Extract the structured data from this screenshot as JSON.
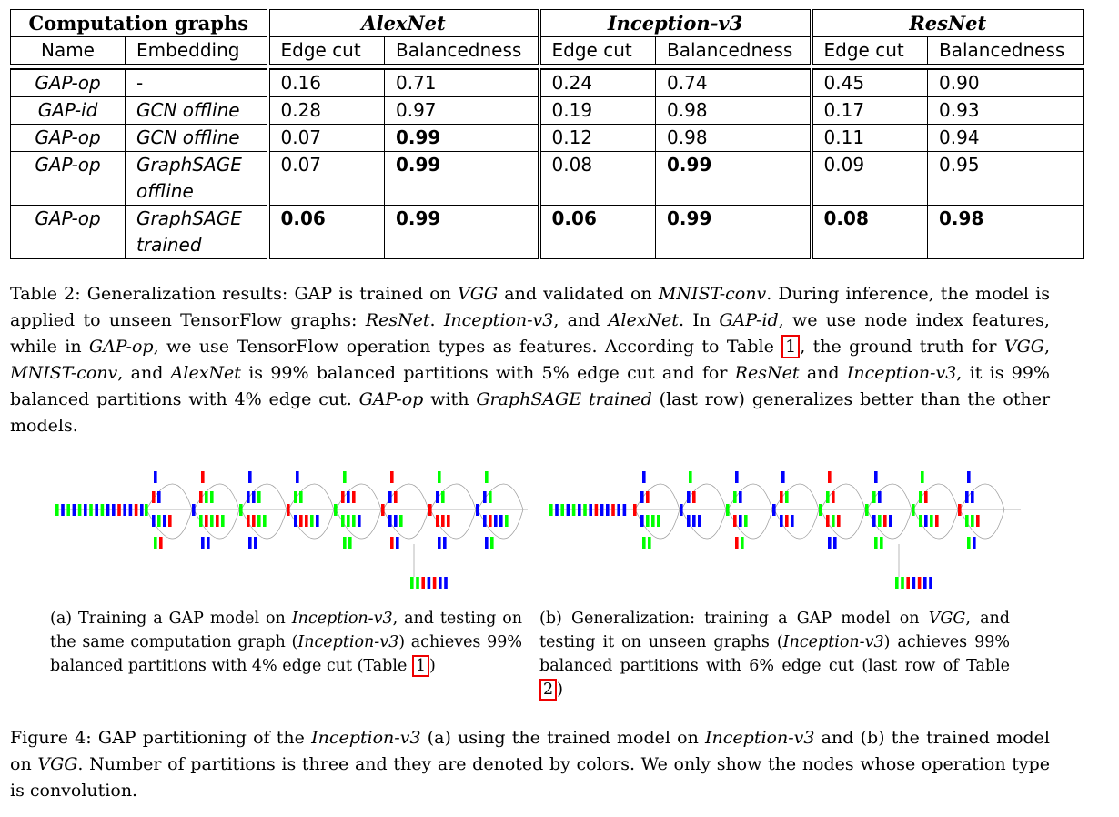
{
  "table": {
    "group_headers": [
      "Computation graphs",
      "AlexNet",
      "Inception-v3",
      "ResNet"
    ],
    "sub_headers": [
      "Name",
      "Embedding",
      "Edge cut",
      "Balancedness",
      "Edge cut",
      "Balancedness",
      "Edge cut",
      "Balancedness"
    ],
    "rows": [
      {
        "name": "GAP-op",
        "embedding_1": "-",
        "embedding_2": "",
        "values": [
          "0.16",
          "0.71",
          "0.24",
          "0.74",
          "0.45",
          "0.90"
        ],
        "bold": [
          false,
          false,
          false,
          false,
          false,
          false
        ]
      },
      {
        "name": "GAP-id",
        "embedding_1": "GCN offline",
        "embedding_2": "",
        "values": [
          "0.28",
          "0.97",
          "0.19",
          "0.98",
          "0.17",
          "0.93"
        ],
        "bold": [
          false,
          false,
          false,
          false,
          false,
          false
        ]
      },
      {
        "name": "GAP-op",
        "embedding_1": "GCN offline",
        "embedding_2": "",
        "values": [
          "0.07",
          "0.99",
          "0.12",
          "0.98",
          "0.11",
          "0.94"
        ],
        "bold": [
          false,
          true,
          false,
          false,
          false,
          false
        ]
      },
      {
        "name": "GAP-op",
        "embedding_1": "GraphSAGE",
        "embedding_2": "offline",
        "values": [
          "0.07",
          "0.99",
          "0.08",
          "0.99",
          "0.09",
          "0.95"
        ],
        "bold": [
          false,
          true,
          false,
          true,
          false,
          false
        ]
      },
      {
        "name": "GAP-op",
        "embedding_1": "GraphSAGE",
        "embedding_2": "trained",
        "values": [
          "0.06",
          "0.99",
          "0.06",
          "0.99",
          "0.08",
          "0.98"
        ],
        "bold": [
          true,
          true,
          true,
          true,
          true,
          true
        ]
      }
    ]
  },
  "table_caption": {
    "label": "Table 2:",
    "t1": " Generalization results: GAP is trained on ",
    "i1": "VGG",
    "t2": " and validated on ",
    "i2": "MNIST-conv",
    "t3": ". During inference, the model is applied to unseen TensorFlow graphs: ",
    "i3": "ResNet",
    "t4": ". ",
    "i4": "Inception-v3",
    "t5": ", and ",
    "i5": "AlexNet",
    "t6": ". In ",
    "i6": "GAP-id",
    "t7": ", we use node index features, while in ",
    "i7": "GAP-op",
    "t8": ", we use TensorFlow operation types as features. According to Table ",
    "ref1": "1",
    "t9": ", the ground truth for ",
    "i8": "VGG",
    "t10": ", ",
    "i9": "MNIST-conv",
    "t11": ", and ",
    "i10": "AlexNet",
    "t12": " is 99% balanced partitions with 5% edge cut and for ",
    "i11": "ResNet",
    "t13": " and ",
    "i12": "Inception-v3",
    "t14": ", it is 99% balanced partitions with 4% edge cut. ",
    "i13": "GAP-op",
    "t15": " with ",
    "i14": "GraphSAGE trained",
    "t16": " (last row) generalizes better than the other models."
  },
  "subfig_a": {
    "t1": "(a) Training a GAP model on ",
    "i1": "Inception-v3",
    "t2": ", and testing on the same computation graph (",
    "i2": "Inception-v3",
    "t3": ") achieves 99% balanced partitions with 4% edge cut (Table ",
    "ref": "1",
    "t4": ")"
  },
  "subfig_b": {
    "t1": "(b) Generalization: training a GAP model on ",
    "i1": "VGG",
    "t2": ", and testing it on unseen graphs (",
    "i2": "Inception-v3",
    "t3": ") achieves 99% balanced partitions with 6% edge cut (last row of Table ",
    "ref": "2",
    "t4": ")"
  },
  "figure_caption": {
    "label": "Figure 4:",
    "t1": " GAP partitioning of the ",
    "i1": "Inception-v3",
    "t2": " (a) using the trained model on ",
    "i2": "Inception-v3",
    "t3": " and (b) the trained model on ",
    "i3": "VGG",
    "t4": ". Number of partitions is three and they are denoted by colors. We only show the nodes whose operation type is convolution."
  },
  "colors": {
    "red": "#ff0000",
    "green": "#00ff00",
    "blue": "#0000ff"
  }
}
